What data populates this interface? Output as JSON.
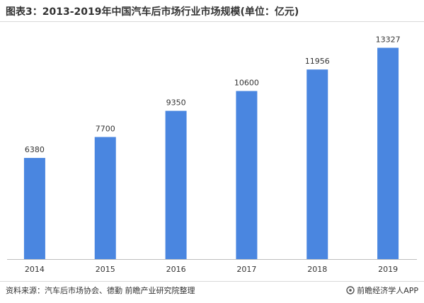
{
  "title": "图表3：2013-2019年中国汽车后市场行业市场规模(单位：亿元)",
  "footer": {
    "source": "资料来源：汽车后市场协会、德勤 前瞻产业研究院整理",
    "brand": "前瞻经济学人APP"
  },
  "colors": {
    "bar": "#4a86e0",
    "axis": "#bfbfbf"
  },
  "chart_data": {
    "type": "bar",
    "title": "图表3：2013-2019年中国汽车后市场行业市场规模(单位：亿元)",
    "xlabel": "",
    "ylabel": "",
    "categories": [
      "2014",
      "2015",
      "2016",
      "2017",
      "2018",
      "2019"
    ],
    "values": [
      6380,
      7700,
      9350,
      10600,
      11956,
      13327
    ],
    "data_labels": [
      "6380",
      "7700",
      "9350",
      "10600",
      "11956",
      "13327"
    ],
    "ylim": [
      0,
      15000
    ],
    "grid": false,
    "legend": "none"
  }
}
